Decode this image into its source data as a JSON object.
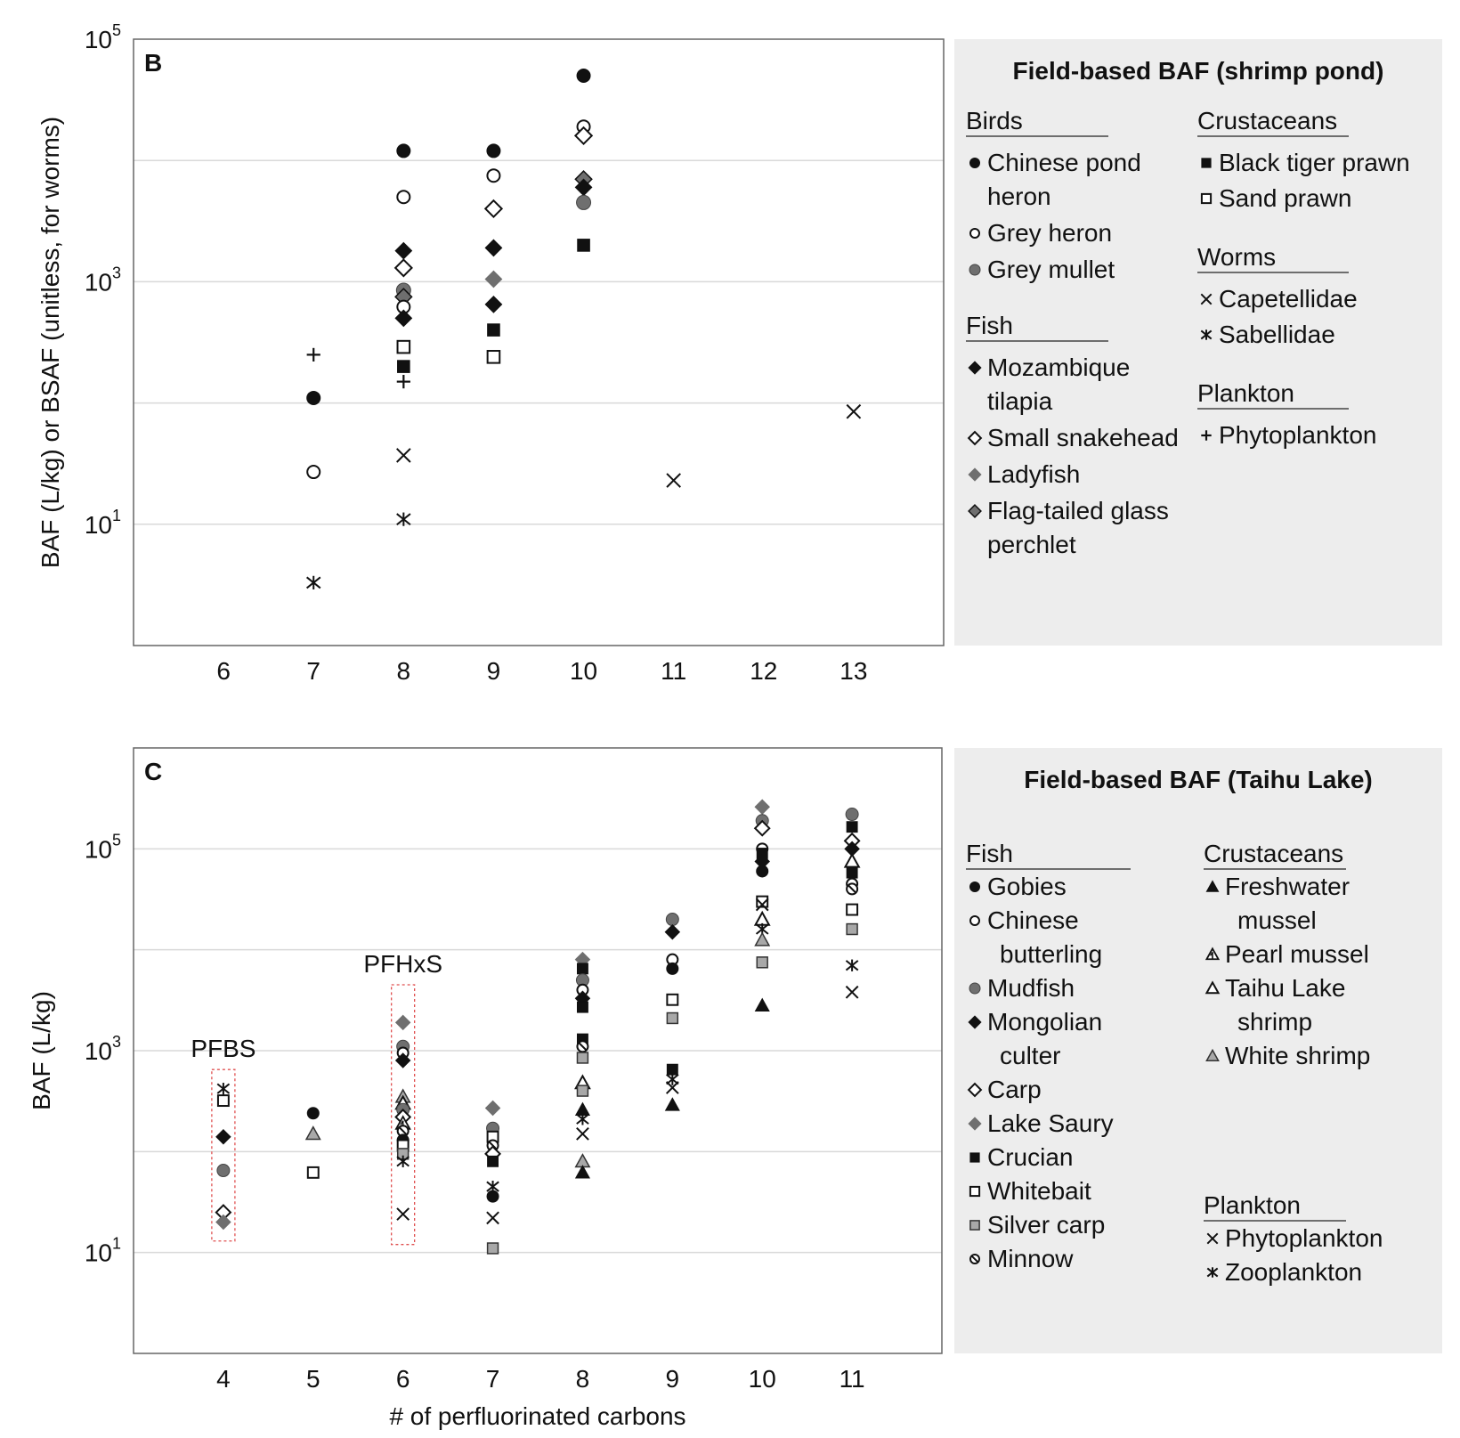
{
  "chart_data": [
    {
      "type": "scatter",
      "panel_label": "B",
      "title": "",
      "xlabel": "",
      "ylabel": "BAF (L/kg) or BSAF (unitless, for worms)",
      "y_scale": "log",
      "ylim": [
        1,
        100000
      ],
      "xlim": [
        5,
        14
      ],
      "x_ticks": [
        6,
        7,
        8,
        9,
        10,
        11,
        12,
        13
      ],
      "y_ticks": [
        {
          "value": 10,
          "base": "10",
          "exp": "1"
        },
        {
          "value": 1000,
          "base": "10",
          "exp": "3"
        },
        {
          "value": 100000,
          "base": "10",
          "exp": "5"
        }
      ],
      "grid": true,
      "legend": {
        "title": "Field-based BAF (shrimp pond)",
        "placement": "right",
        "groups": [
          {
            "heading": "Birds",
            "items": [
              {
                "marker": "circle-filled",
                "lines": [
                  "Chinese pond",
                  "heron"
                ]
              },
              {
                "marker": "circle-open",
                "lines": [
                  "Grey heron"
                ]
              },
              {
                "marker": "circle-gray",
                "lines": [
                  "Grey mullet"
                ]
              }
            ]
          },
          {
            "heading": "Fish",
            "items": [
              {
                "marker": "diamond-filled",
                "lines": [
                  "Mozambique",
                  "tilapia"
                ]
              },
              {
                "marker": "diamond-open",
                "lines": [
                  "Small snakehead"
                ]
              },
              {
                "marker": "diamond-gray",
                "lines": [
                  "Ladyfish"
                ]
              },
              {
                "marker": "diamond-gray-outline",
                "lines": [
                  "Flag-tailed glass",
                  "perchlet"
                ]
              }
            ]
          },
          {
            "heading": "Crustaceans",
            "items": [
              {
                "marker": "square-filled",
                "lines": [
                  "Black tiger prawn"
                ]
              },
              {
                "marker": "square-open",
                "lines": [
                  "Sand prawn"
                ]
              }
            ]
          },
          {
            "heading": "Worms",
            "items": [
              {
                "marker": "x",
                "lines": [
                  "Capetellidae"
                ]
              },
              {
                "marker": "asterisk",
                "lines": [
                  "Sabellidae"
                ]
              }
            ]
          },
          {
            "heading": "Plankton",
            "items": [
              {
                "marker": "plus",
                "lines": [
                  "Phytoplankton"
                ]
              }
            ]
          }
        ]
      },
      "points": [
        {
          "x": 7,
          "y": 250,
          "m": "plus"
        },
        {
          "x": 7,
          "y": 110,
          "m": "circle-filled"
        },
        {
          "x": 7,
          "y": 27,
          "m": "circle-open"
        },
        {
          "x": 7,
          "y": 3.3,
          "m": "asterisk"
        },
        {
          "x": 8,
          "y": 12000,
          "m": "circle-filled"
        },
        {
          "x": 8,
          "y": 5000,
          "m": "circle-open"
        },
        {
          "x": 8,
          "y": 1800,
          "m": "diamond-filled"
        },
        {
          "x": 8,
          "y": 1300,
          "m": "diamond-open"
        },
        {
          "x": 8,
          "y": 850,
          "m": "circle-gray"
        },
        {
          "x": 8,
          "y": 750,
          "m": "diamond-gray-outline"
        },
        {
          "x": 8,
          "y": 620,
          "m": "circle-open"
        },
        {
          "x": 8,
          "y": 500,
          "m": "diamond-filled"
        },
        {
          "x": 8,
          "y": 290,
          "m": "square-open"
        },
        {
          "x": 8,
          "y": 200,
          "m": "square-filled"
        },
        {
          "x": 8,
          "y": 150,
          "m": "plus"
        },
        {
          "x": 8,
          "y": 37,
          "m": "x"
        },
        {
          "x": 8,
          "y": 11,
          "m": "asterisk"
        },
        {
          "x": 9,
          "y": 12000,
          "m": "circle-filled"
        },
        {
          "x": 9,
          "y": 7500,
          "m": "circle-open"
        },
        {
          "x": 9,
          "y": 4000,
          "m": "diamond-open"
        },
        {
          "x": 9,
          "y": 1900,
          "m": "diamond-filled"
        },
        {
          "x": 9,
          "y": 1050,
          "m": "diamond-gray"
        },
        {
          "x": 9,
          "y": 650,
          "m": "diamond-filled"
        },
        {
          "x": 9,
          "y": 400,
          "m": "square-filled"
        },
        {
          "x": 9,
          "y": 240,
          "m": "square-open"
        },
        {
          "x": 10,
          "y": 50000,
          "m": "circle-filled"
        },
        {
          "x": 10,
          "y": 19000,
          "m": "circle-open"
        },
        {
          "x": 10,
          "y": 16000,
          "m": "diamond-open"
        },
        {
          "x": 10,
          "y": 7000,
          "m": "diamond-gray-outline"
        },
        {
          "x": 10,
          "y": 6000,
          "m": "diamond-filled"
        },
        {
          "x": 10,
          "y": 4500,
          "m": "circle-gray"
        },
        {
          "x": 10,
          "y": 2000,
          "m": "square-filled"
        },
        {
          "x": 11,
          "y": 23,
          "m": "x"
        },
        {
          "x": 13,
          "y": 85,
          "m": "x"
        }
      ]
    },
    {
      "type": "scatter",
      "panel_label": "C",
      "title": "",
      "xlabel": "# of perfluorinated carbons",
      "ylabel": "BAF (L/kg)",
      "y_scale": "log",
      "ylim": [
        1,
        1000000
      ],
      "xlim": [
        3,
        12
      ],
      "x_ticks": [
        4,
        5,
        6,
        7,
        8,
        9,
        10,
        11
      ],
      "y_ticks": [
        {
          "value": 10,
          "base": "10",
          "exp": "1"
        },
        {
          "value": 1000,
          "base": "10",
          "exp": "3"
        },
        {
          "value": 100000,
          "base": "10",
          "exp": "5"
        }
      ],
      "grid": true,
      "annotations": [
        {
          "text": "PFBS",
          "x": 4,
          "y_low": 13,
          "y_high": 650
        },
        {
          "text": "PFHxS",
          "x": 6,
          "y_low": 12,
          "y_high": 4500
        }
      ],
      "legend": {
        "title": "Field-based BAF (Taihu Lake)",
        "placement": "right",
        "groups": [
          {
            "heading": "Fish",
            "items": [
              {
                "marker": "circle-filled",
                "lines": [
                  "Gobies"
                ]
              },
              {
                "marker": "circle-open",
                "lines": [
                  "Chinese",
                  "butterling"
                ]
              },
              {
                "marker": "circle-gray",
                "lines": [
                  "Mudfish"
                ]
              },
              {
                "marker": "diamond-filled",
                "lines": [
                  "Mongolian",
                  "culter"
                ]
              },
              {
                "marker": "diamond-open",
                "lines": [
                  "Carp"
                ]
              },
              {
                "marker": "diamond-gray",
                "lines": [
                  "Lake Saury"
                ]
              },
              {
                "marker": "square-filled",
                "lines": [
                  "Crucian"
                ]
              },
              {
                "marker": "square-open",
                "lines": [
                  "Whitebait"
                ]
              },
              {
                "marker": "square-gray",
                "lines": [
                  "Silver carp"
                ]
              },
              {
                "marker": "circle-slash",
                "lines": [
                  "Minnow"
                ]
              }
            ]
          },
          {
            "heading": "Crustaceans",
            "items": [
              {
                "marker": "triangle-filled",
                "lines": [
                  "Freshwater",
                  "mussel"
                ]
              },
              {
                "marker": "triangle-hatched",
                "lines": [
                  "Pearl mussel"
                ]
              },
              {
                "marker": "triangle-open",
                "lines": [
                  "Taihu Lake",
                  "shrimp"
                ]
              },
              {
                "marker": "triangle-gray",
                "lines": [
                  "White shrimp"
                ]
              }
            ]
          },
          {
            "heading": "Plankton",
            "items": [
              {
                "marker": "x",
                "lines": [
                  "Phytoplankton"
                ]
              },
              {
                "marker": "asterisk",
                "lines": [
                  "Zooplankton"
                ]
              }
            ]
          }
        ]
      },
      "points": [
        {
          "x": 4,
          "y": 420,
          "m": "asterisk"
        },
        {
          "x": 4,
          "y": 320,
          "m": "square-open"
        },
        {
          "x": 4,
          "y": 140,
          "m": "diamond-filled"
        },
        {
          "x": 4,
          "y": 65,
          "m": "circle-gray"
        },
        {
          "x": 4,
          "y": 25,
          "m": "diamond-open"
        },
        {
          "x": 4,
          "y": 20,
          "m": "diamond-gray"
        },
        {
          "x": 5,
          "y": 240,
          "m": "circle-filled"
        },
        {
          "x": 5,
          "y": 150,
          "m": "triangle-gray"
        },
        {
          "x": 5,
          "y": 62,
          "m": "square-open"
        },
        {
          "x": 6,
          "y": 1900,
          "m": "diamond-gray"
        },
        {
          "x": 6,
          "y": 1100,
          "m": "circle-gray"
        },
        {
          "x": 6,
          "y": 950,
          "m": "circle-open"
        },
        {
          "x": 6,
          "y": 800,
          "m": "diamond-filled"
        },
        {
          "x": 6,
          "y": 350,
          "m": "triangle-gray"
        },
        {
          "x": 6,
          "y": 300,
          "m": "triangle-open"
        },
        {
          "x": 6,
          "y": 260,
          "m": "circle-gray"
        },
        {
          "x": 6,
          "y": 220,
          "m": "diamond-open"
        },
        {
          "x": 6,
          "y": 190,
          "m": "triangle-hatched"
        },
        {
          "x": 6,
          "y": 160,
          "m": "circle-slash"
        },
        {
          "x": 6,
          "y": 130,
          "m": "circle-filled"
        },
        {
          "x": 6,
          "y": 115,
          "m": "square-open"
        },
        {
          "x": 6,
          "y": 95,
          "m": "square-gray"
        },
        {
          "x": 6,
          "y": 80,
          "m": "asterisk"
        },
        {
          "x": 6,
          "y": 24,
          "m": "x"
        },
        {
          "x": 7,
          "y": 270,
          "m": "diamond-gray"
        },
        {
          "x": 7,
          "y": 170,
          "m": "circle-gray"
        },
        {
          "x": 7,
          "y": 140,
          "m": "square-open"
        },
        {
          "x": 7,
          "y": 115,
          "m": "circle-slash"
        },
        {
          "x": 7,
          "y": 95,
          "m": "diamond-open"
        },
        {
          "x": 7,
          "y": 80,
          "m": "square-filled"
        },
        {
          "x": 7,
          "y": 45,
          "m": "asterisk"
        },
        {
          "x": 7,
          "y": 36,
          "m": "circle-filled"
        },
        {
          "x": 7,
          "y": 22,
          "m": "x"
        },
        {
          "x": 7,
          "y": 11,
          "m": "square-gray"
        },
        {
          "x": 8,
          "y": 8000,
          "m": "diamond-gray"
        },
        {
          "x": 8,
          "y": 6500,
          "m": "square-filled"
        },
        {
          "x": 8,
          "y": 5000,
          "m": "circle-gray"
        },
        {
          "x": 8,
          "y": 4000,
          "m": "circle-open"
        },
        {
          "x": 8,
          "y": 3300,
          "m": "diamond-filled"
        },
        {
          "x": 8,
          "y": 2700,
          "m": "square-filled"
        },
        {
          "x": 8,
          "y": 1300,
          "m": "square-filled"
        },
        {
          "x": 8,
          "y": 1100,
          "m": "circle-slash"
        },
        {
          "x": 8,
          "y": 850,
          "m": "square-gray"
        },
        {
          "x": 8,
          "y": 480,
          "m": "triangle-open"
        },
        {
          "x": 8,
          "y": 400,
          "m": "square-gray"
        },
        {
          "x": 8,
          "y": 260,
          "m": "triangle-filled"
        },
        {
          "x": 8,
          "y": 210,
          "m": "asterisk"
        },
        {
          "x": 8,
          "y": 150,
          "m": "x"
        },
        {
          "x": 8,
          "y": 80,
          "m": "triangle-gray"
        },
        {
          "x": 8,
          "y": 62,
          "m": "triangle-filled"
        },
        {
          "x": 9,
          "y": 20000,
          "m": "circle-gray"
        },
        {
          "x": 9,
          "y": 15000,
          "m": "diamond-filled"
        },
        {
          "x": 9,
          "y": 8000,
          "m": "circle-open"
        },
        {
          "x": 9,
          "y": 6500,
          "m": "circle-filled"
        },
        {
          "x": 9,
          "y": 3200,
          "m": "square-open"
        },
        {
          "x": 9,
          "y": 2100,
          "m": "square-gray"
        },
        {
          "x": 9,
          "y": 650,
          "m": "square-filled"
        },
        {
          "x": 9,
          "y": 520,
          "m": "asterisk"
        },
        {
          "x": 9,
          "y": 430,
          "m": "x"
        },
        {
          "x": 9,
          "y": 290,
          "m": "triangle-filled"
        },
        {
          "x": 10,
          "y": 260000,
          "m": "diamond-gray"
        },
        {
          "x": 10,
          "y": 190000,
          "m": "circle-gray"
        },
        {
          "x": 10,
          "y": 160000,
          "m": "diamond-open"
        },
        {
          "x": 10,
          "y": 100000,
          "m": "circle-open"
        },
        {
          "x": 10,
          "y": 90000,
          "m": "square-filled"
        },
        {
          "x": 10,
          "y": 75000,
          "m": "diamond-filled"
        },
        {
          "x": 10,
          "y": 60000,
          "m": "circle-filled"
        },
        {
          "x": 10,
          "y": 30000,
          "m": "square-open"
        },
        {
          "x": 10,
          "y": 28000,
          "m": "x"
        },
        {
          "x": 10,
          "y": 20000,
          "m": "triangle-open"
        },
        {
          "x": 10,
          "y": 16000,
          "m": "asterisk"
        },
        {
          "x": 10,
          "y": 12500,
          "m": "triangle-gray"
        },
        {
          "x": 10,
          "y": 7500,
          "m": "square-gray"
        },
        {
          "x": 10,
          "y": 2800,
          "m": "triangle-filled"
        },
        {
          "x": 11,
          "y": 220000,
          "m": "circle-gray"
        },
        {
          "x": 11,
          "y": 165000,
          "m": "square-filled"
        },
        {
          "x": 11,
          "y": 120000,
          "m": "diamond-open"
        },
        {
          "x": 11,
          "y": 100000,
          "m": "diamond-filled"
        },
        {
          "x": 11,
          "y": 75000,
          "m": "triangle-open"
        },
        {
          "x": 11,
          "y": 58000,
          "m": "square-filled"
        },
        {
          "x": 11,
          "y": 45000,
          "m": "circle-open"
        },
        {
          "x": 11,
          "y": 40000,
          "m": "circle-slash"
        },
        {
          "x": 11,
          "y": 25000,
          "m": "square-open"
        },
        {
          "x": 11,
          "y": 16000,
          "m": "square-gray"
        },
        {
          "x": 11,
          "y": 7000,
          "m": "asterisk"
        },
        {
          "x": 11,
          "y": 3800,
          "m": "x"
        }
      ]
    }
  ],
  "colors": {
    "black": "#111111",
    "gray_marker": "#6f6f6f",
    "light_gray_marker": "#a8a8a8",
    "legend_bg": "#ededed",
    "grid": "#d9d9d9",
    "axis": "#555555",
    "highlight_box": "#e05050"
  }
}
